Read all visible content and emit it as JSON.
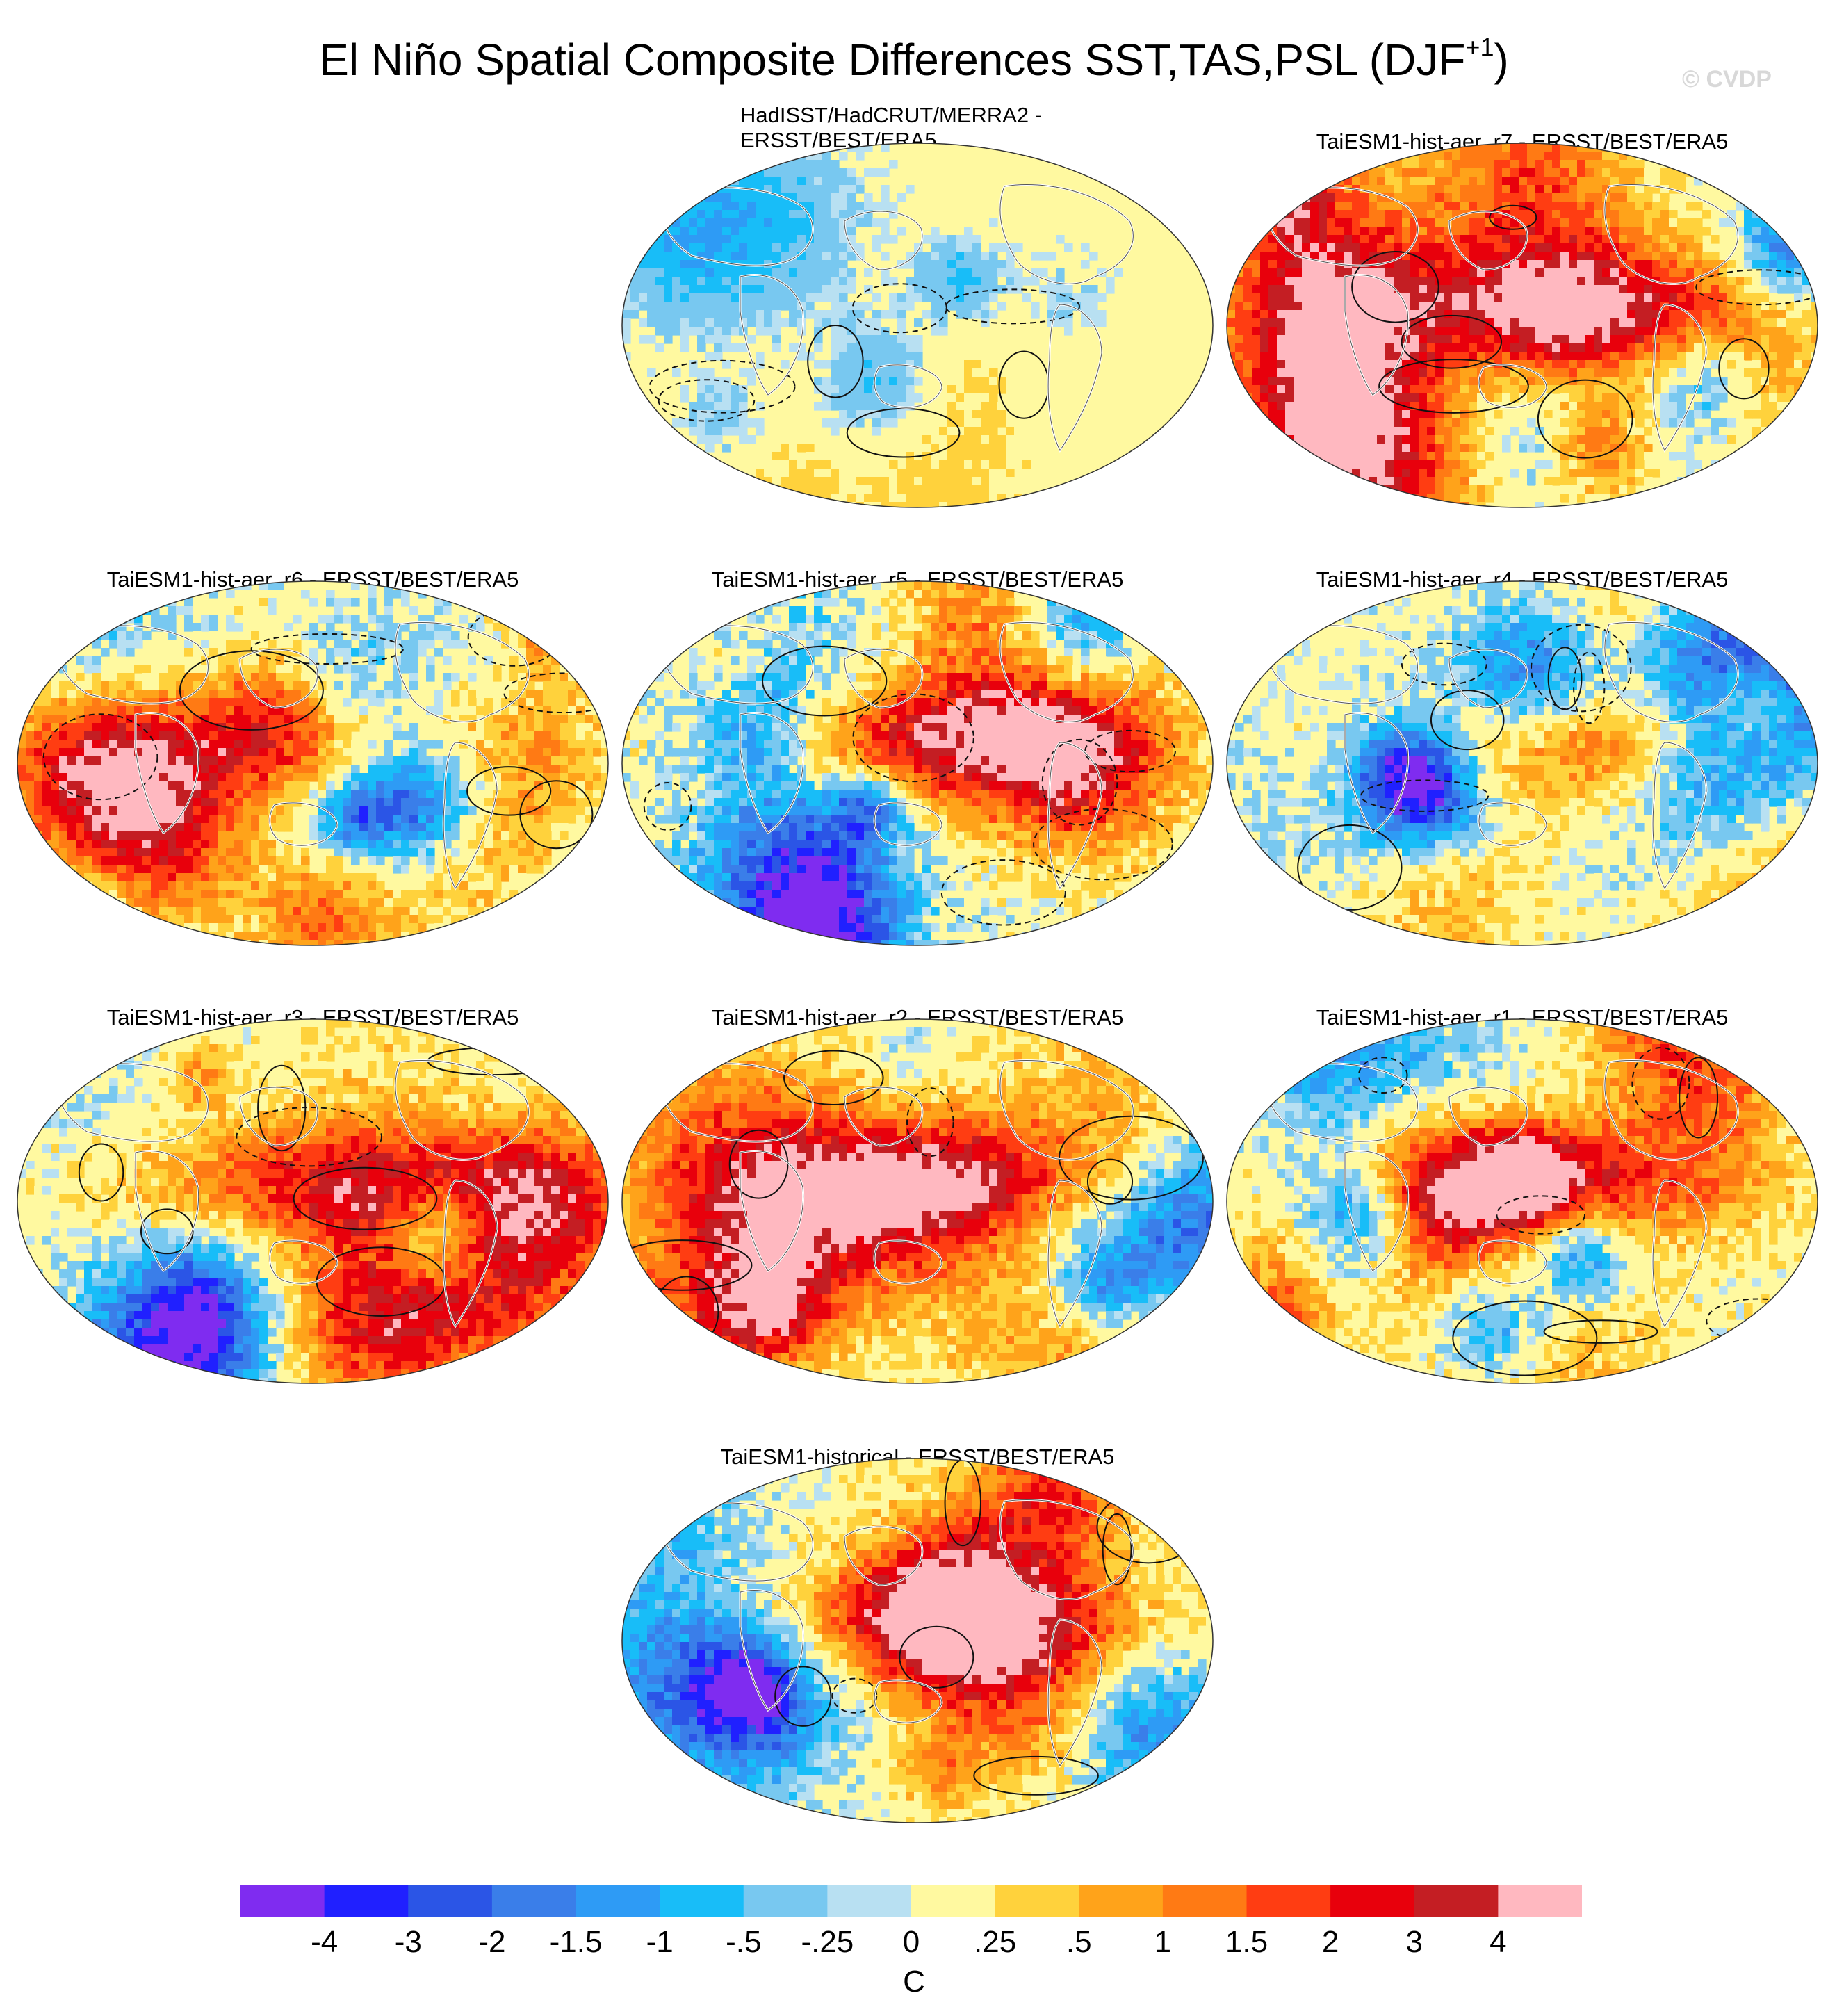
{
  "title": {
    "main": "El Niño Spatial Composite Differences SST,TAS,PSL (DJF",
    "superscript": "+1",
    "close": ")"
  },
  "watermark": "© CVDP",
  "panels": [
    {
      "title_line1": "HadISST/HadCRUT/MERRA2 -",
      "title_line2": "ERSST/BEST/ERA5",
      "intensity": 0.35
    },
    {
      "title": "TaiESM1-hist-aer_r7 - ERSST/BEST/ERA5",
      "intensity": 0.75
    },
    {
      "title": "TaiESM1-hist-aer_r6 - ERSST/BEST/ERA5",
      "intensity": 0.8
    },
    {
      "title": "TaiESM1-hist-aer_r5 - ERSST/BEST/ERA5",
      "intensity": 0.95
    },
    {
      "title": "TaiESM1-hist-aer_r4 - ERSST/BEST/ERA5",
      "intensity": 0.8
    },
    {
      "title": "TaiESM1-hist-aer_r3 - ERSST/BEST/ERA5",
      "intensity": 0.8
    },
    {
      "title": "TaiESM1-hist-aer_r2 - ERSST/BEST/ERA5",
      "intensity": 0.8
    },
    {
      "title": "TaiESM1-hist-aer_r1 - ERSST/BEST/ERA5",
      "intensity": 0.85
    },
    {
      "title": "TaiESM1-historical - ERSST/BEST/ERA5",
      "intensity": 0.8
    }
  ],
  "colorbar": {
    "colors": [
      "#7f2cf0",
      "#2020ff",
      "#2b55e6",
      "#3a7ee9",
      "#2e9bf5",
      "#18bdf8",
      "#78c8f0",
      "#b8e0f2",
      "#fff9a0",
      "#ffd23c",
      "#ffa31a",
      "#ff7a14",
      "#ff3d12",
      "#e8000c",
      "#c41e23",
      "#ffb8c0"
    ],
    "labels": [
      "-4",
      "-3",
      "-2",
      "-1.5",
      "-1",
      "-.5",
      "-.25",
      "0",
      ".25",
      ".5",
      "1",
      "1.5",
      "2",
      "3",
      "4"
    ],
    "units": "C"
  }
}
